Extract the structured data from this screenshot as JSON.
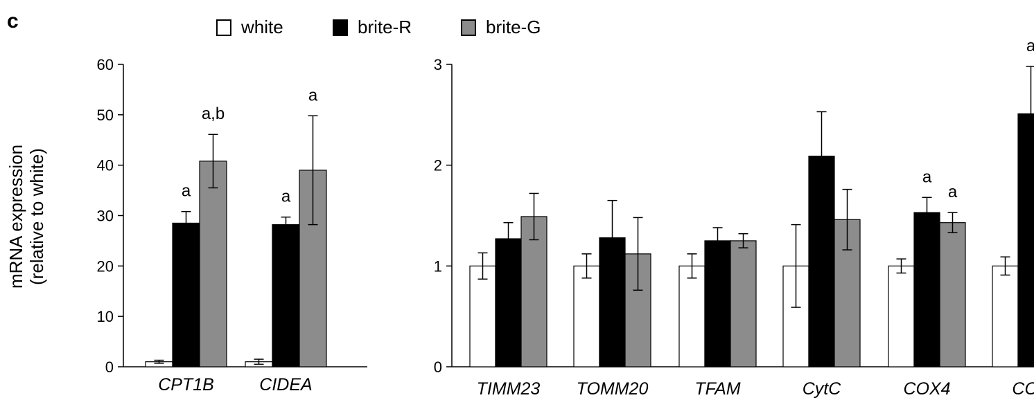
{
  "panel_label": "c",
  "legend": {
    "white": "white",
    "brite_r": "brite-R",
    "brite_g": "brite-G"
  },
  "ylabel_line1": "mRNA expression",
  "ylabel_line2": "(relative to white)",
  "colors": {
    "white": "#ffffff",
    "brite_r": "#000000",
    "brite_g": "#8c8c8c",
    "axis": "#000000"
  },
  "chart_data": [
    {
      "type": "bar",
      "title": "",
      "xlabel": "",
      "ylabel": "mRNA expression (relative to white)",
      "ylim": [
        0,
        60
      ],
      "yticks": [
        "0",
        "10",
        "20",
        "30",
        "40",
        "50",
        "60"
      ],
      "categories": [
        "CPT1B",
        "CIDEA"
      ],
      "series": [
        {
          "name": "white",
          "values": [
            1.0,
            1.0
          ],
          "errors": [
            0.3,
            0.5
          ],
          "labels": [
            "",
            ""
          ]
        },
        {
          "name": "brite-R",
          "values": [
            28.5,
            28.2
          ],
          "errors": [
            2.3,
            1.5
          ],
          "labels": [
            "a",
            "a"
          ]
        },
        {
          "name": "brite-G",
          "values": [
            40.8,
            39.0
          ],
          "errors": [
            5.3,
            10.8
          ],
          "labels": [
            "a,b",
            "a"
          ]
        }
      ]
    },
    {
      "type": "bar",
      "title": "",
      "xlabel": "",
      "ylabel": "",
      "ylim": [
        0,
        3
      ],
      "yticks": [
        "0",
        "1",
        "2",
        "3"
      ],
      "categories": [
        "TIMM23",
        "TOMM20",
        "TFAM",
        "CytC",
        "COX4",
        "COX"
      ],
      "series": [
        {
          "name": "white",
          "values": [
            1.0,
            1.0,
            1.0,
            1.0,
            1.0,
            1.0
          ],
          "errors": [
            0.13,
            0.12,
            0.12,
            0.41,
            0.07,
            0.09
          ],
          "labels": [
            "",
            "",
            "",
            "",
            "",
            ""
          ]
        },
        {
          "name": "brite-R",
          "values": [
            1.27,
            1.28,
            1.25,
            2.09,
            1.53,
            2.51
          ],
          "errors": [
            0.16,
            0.37,
            0.13,
            0.44,
            0.15,
            0.47
          ],
          "labels": [
            "",
            "",
            "",
            "",
            "a",
            "a"
          ]
        },
        {
          "name": "brite-G",
          "values": [
            1.49,
            1.12,
            1.25,
            1.46,
            1.43,
            null
          ],
          "errors": [
            0.23,
            0.36,
            0.07,
            0.3,
            0.1,
            null
          ],
          "labels": [
            "",
            "",
            "",
            "",
            "a",
            ""
          ]
        }
      ]
    }
  ]
}
